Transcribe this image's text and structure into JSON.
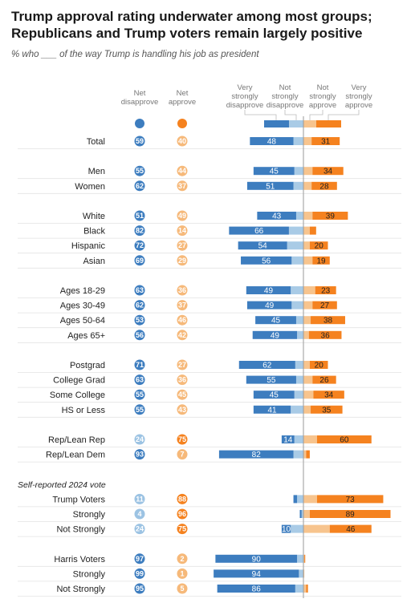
{
  "title": "Trump approval rating underwater among most groups; Republicans and Trump voters remain largely positive",
  "subtitle": "% who ___ of the way Trump is handling his job as president",
  "headers": {
    "net_disapprove": [
      "Net",
      "disapprove"
    ],
    "net_approve": [
      "Net",
      "approve"
    ],
    "very_strongly_disapprove": [
      "Very",
      "strongly",
      "disapprove"
    ],
    "not_strongly_disapprove": [
      "Not",
      "strongly",
      "disapprove"
    ],
    "not_strongly_approve": [
      "Not",
      "strongly",
      "approve"
    ],
    "very_strongly_approve": [
      "Very",
      "strongly",
      "approve"
    ]
  },
  "colors": {
    "very_strongly_disapprove": "#3d7dbf",
    "not_strongly_disapprove": "#a9cbe6",
    "not_strongly_approve": "#f7c48e",
    "very_strongly_approve": "#f5821f",
    "net_disapprove_light": "#9cc3e3",
    "net_approve_light": "#f6b97a"
  },
  "chart_data": {
    "type": "bar",
    "orientation": "horizontal-diverging",
    "series": [
      "Very strongly disapprove",
      "Not strongly disapprove",
      "Not strongly approve",
      "Very strongly approve"
    ],
    "rows": [
      {
        "label": "Total",
        "net_disapprove": 59,
        "net_approve": 40,
        "strong_dis": 48,
        "ns_dis": 11,
        "ns_app": 9,
        "strong_app": 31
      },
      {
        "spacer": true
      },
      {
        "label": "Men",
        "net_disapprove": 55,
        "net_approve": 44,
        "strong_dis": 45,
        "ns_dis": 10,
        "ns_app": 10,
        "strong_app": 34
      },
      {
        "label": "Women",
        "net_disapprove": 62,
        "net_approve": 37,
        "strong_dis": 51,
        "ns_dis": 11,
        "ns_app": 9,
        "strong_app": 28
      },
      {
        "spacer": true
      },
      {
        "label": "White",
        "net_disapprove": 51,
        "net_approve": 49,
        "strong_dis": 43,
        "ns_dis": 8,
        "ns_app": 10,
        "strong_app": 39
      },
      {
        "label": "Black",
        "net_disapprove": 82,
        "net_approve": 14,
        "strong_dis": 66,
        "ns_dis": 16,
        "ns_app": 7,
        "strong_app": 7
      },
      {
        "label": "Hispanic",
        "net_disapprove": 72,
        "net_approve": 27,
        "strong_dis": 54,
        "ns_dis": 18,
        "ns_app": 7,
        "strong_app": 20
      },
      {
        "label": "Asian",
        "net_disapprove": 69,
        "net_approve": 29,
        "strong_dis": 56,
        "ns_dis": 13,
        "ns_app": 10,
        "strong_app": 19
      },
      {
        "spacer": true
      },
      {
        "label": "Ages 18-29",
        "net_disapprove": 63,
        "net_approve": 36,
        "strong_dis": 49,
        "ns_dis": 14,
        "ns_app": 13,
        "strong_app": 23
      },
      {
        "label": "Ages 30-49",
        "net_disapprove": 62,
        "net_approve": 37,
        "strong_dis": 49,
        "ns_dis": 13,
        "ns_app": 10,
        "strong_app": 27
      },
      {
        "label": "Ages 50-64",
        "net_disapprove": 53,
        "net_approve": 46,
        "strong_dis": 45,
        "ns_dis": 8,
        "ns_app": 8,
        "strong_app": 38
      },
      {
        "label": "Ages 65+",
        "net_disapprove": 56,
        "net_approve": 42,
        "strong_dis": 49,
        "ns_dis": 7,
        "ns_app": 6,
        "strong_app": 36
      },
      {
        "spacer": true
      },
      {
        "label": "Postgrad",
        "net_disapprove": 71,
        "net_approve": 27,
        "strong_dis": 62,
        "ns_dis": 9,
        "ns_app": 7,
        "strong_app": 20
      },
      {
        "label": "College Grad",
        "net_disapprove": 63,
        "net_approve": 36,
        "strong_dis": 55,
        "ns_dis": 8,
        "ns_app": 10,
        "strong_app": 26
      },
      {
        "label": "Some College",
        "net_disapprove": 55,
        "net_approve": 45,
        "strong_dis": 45,
        "ns_dis": 10,
        "ns_app": 11,
        "strong_app": 34
      },
      {
        "label": "HS or Less",
        "net_disapprove": 55,
        "net_approve": 43,
        "strong_dis": 41,
        "ns_dis": 14,
        "ns_app": 8,
        "strong_app": 35
      },
      {
        "spacer": true
      },
      {
        "label": "Rep/Lean Rep",
        "net_disapprove": 24,
        "net_approve": 75,
        "strong_dis": 14,
        "ns_dis": 10,
        "ns_app": 15,
        "strong_app": 60
      },
      {
        "label": "Rep/Lean Dem",
        "net_disapprove": 93,
        "net_approve": 7,
        "strong_dis": 82,
        "ns_dis": 11,
        "ns_app": 3,
        "strong_app": 4
      },
      {
        "spacer": true
      },
      {
        "section": "Self-reported 2024 vote"
      },
      {
        "label": "Trump Voters",
        "net_disapprove": 11,
        "net_approve": 88,
        "strong_dis": 4,
        "ns_dis": 7,
        "ns_app": 15,
        "strong_app": 73
      },
      {
        "label": "Strongly",
        "net_disapprove": 4,
        "net_approve": 96,
        "strong_dis": 2,
        "ns_dis": 2,
        "ns_app": 7,
        "strong_app": 89
      },
      {
        "label": "Not Strongly",
        "net_disapprove": 24,
        "net_approve": 75,
        "strong_dis": 10,
        "ns_dis": 14,
        "ns_app": 29,
        "strong_app": 46
      },
      {
        "spacer": true
      },
      {
        "label": "Harris Voters",
        "net_disapprove": 97,
        "net_approve": 2,
        "strong_dis": 90,
        "ns_dis": 7,
        "ns_app": 1,
        "strong_app": 1
      },
      {
        "label": "Strongly",
        "net_disapprove": 99,
        "net_approve": 1,
        "strong_dis": 94,
        "ns_dis": 5,
        "ns_app": 1,
        "strong_app": 0
      },
      {
        "label": "Not Strongly",
        "net_disapprove": 95,
        "net_approve": 5,
        "strong_dis": 86,
        "ns_dis": 9,
        "ns_app": 3,
        "strong_app": 2
      }
    ]
  }
}
